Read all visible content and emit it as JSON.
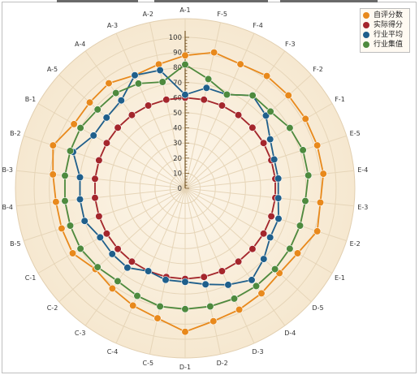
{
  "chart_data": {
    "type": "radar",
    "title": "",
    "categories": [
      "A-1",
      "A-2",
      "A-3",
      "A-4",
      "A-5",
      "B-1",
      "B-2",
      "B-3",
      "B-4",
      "B-5",
      "C-1",
      "C-2",
      "C-3",
      "C-4",
      "C-5",
      "D-1",
      "D-2",
      "D-3",
      "D-4",
      "D-5",
      "E-1",
      "E-2",
      "E-3",
      "E-4",
      "E-5",
      "F-1",
      "F-2",
      "F-3",
      "F-4",
      "F-5"
    ],
    "radial_ticks": [
      0,
      10,
      20,
      30,
      40,
      50,
      60,
      70,
      80,
      90,
      100
    ],
    "rlim": [
      0,
      100
    ],
    "grid": true,
    "legend_position": "top-right",
    "series": [
      {
        "name": "自评分数",
        "color": "#e8891c",
        "values": [
          88,
          84,
          82,
          86,
          85,
          85,
          92,
          88,
          86,
          86,
          86,
          80,
          82,
          85,
          88,
          95,
          90,
          88,
          86,
          84,
          86,
          92,
          90,
          92,
          92,
          92,
          92,
          92,
          90,
          92
        ]
      },
      {
        "name": "实际得分",
        "color": "#a4262c",
        "values": [
          60,
          60,
          60,
          60,
          60,
          60,
          60,
          60,
          60,
          60,
          60,
          60,
          60,
          60,
          60,
          60,
          60,
          60,
          60,
          60,
          60,
          60,
          60,
          60,
          60,
          60,
          60,
          60,
          60,
          60
        ]
      },
      {
        "name": "行业平均",
        "color": "#1f5f8b",
        "values": [
          62,
          80,
          82,
          72,
          70,
          70,
          78,
          70,
          70,
          70,
          65,
          65,
          65,
          60,
          62,
          62,
          65,
          70,
          75,
          70,
          65,
          65,
          62,
          62,
          62,
          65,
          72,
          76,
          68,
          68
        ]
      },
      {
        "name": "行业集值",
        "color": "#4e8a3e",
        "values": [
          82,
          72,
          76,
          78,
          78,
          80,
          80,
          80,
          80,
          80,
          80,
          78,
          76,
          78,
          80,
          80,
          80,
          80,
          80,
          80,
          80,
          80,
          80,
          82,
          82,
          80,
          76,
          76,
          68,
          74
        ]
      }
    ]
  }
}
